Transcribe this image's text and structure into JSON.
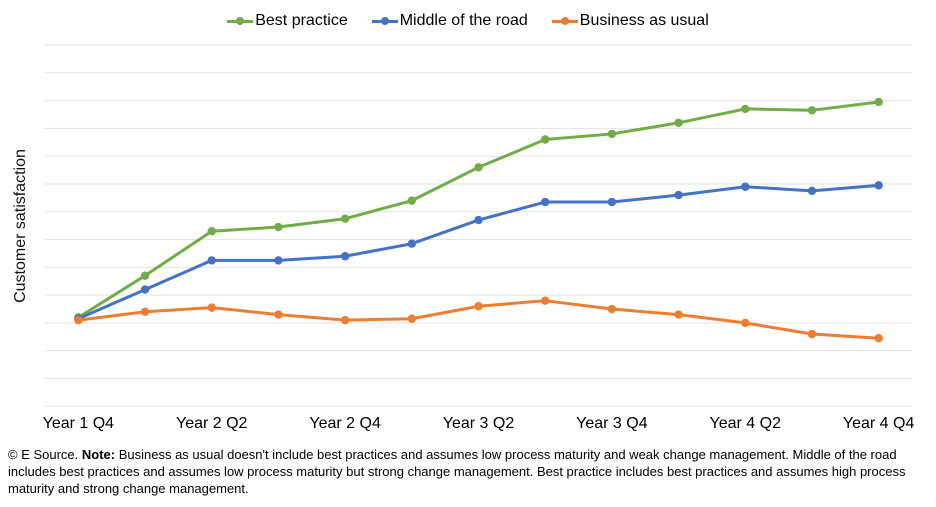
{
  "chart_data": {
    "type": "line",
    "title": "",
    "xlabel": "",
    "ylabel": "Customer satisfaction",
    "x_tick_labels": [
      "Year 1 Q4",
      "Year 2 Q2",
      "Year 2 Q4",
      "Year 3 Q2",
      "Year 3 Q4",
      "Year 4 Q2",
      "Year 4 Q4"
    ],
    "tick_every_n_points": 2,
    "n_points": 13,
    "ylim": [
      0,
      13
    ],
    "y_axis_numeric_labels_shown": false,
    "y_value_units": "relative level (estimated in gridline units; no numeric labels shown)",
    "grid": "horizontal-only",
    "gridline_count": 14,
    "gridline_color": "#e2e2e2",
    "legend_position": "top-center",
    "marker_style": "circle",
    "series": [
      {
        "name": "Best practice",
        "color": "#70AD47",
        "values": [
          3.2,
          4.7,
          6.3,
          6.45,
          6.75,
          7.4,
          8.6,
          9.6,
          9.8,
          10.2,
          10.7,
          10.65,
          10.95
        ]
      },
      {
        "name": "Middle of the road",
        "color": "#4472C4",
        "values": [
          3.15,
          4.2,
          5.25,
          5.25,
          5.4,
          5.85,
          6.7,
          7.35,
          7.35,
          7.6,
          7.9,
          7.75,
          7.95
        ]
      },
      {
        "name": "Business as usual",
        "color": "#ED7D31",
        "values": [
          3.1,
          3.4,
          3.55,
          3.3,
          3.1,
          3.15,
          3.6,
          3.8,
          3.5,
          3.3,
          3.0,
          2.6,
          2.45
        ]
      }
    ]
  },
  "footnote": {
    "prefix": "© E Source. ",
    "note_label": "Note:",
    "body": " Business as usual doesn't include best practices and assumes low process maturity and weak change management. Middle of the road includes best practices and assumes low process maturity but strong change management. Best practice includes best practices and assumes high process maturity and strong change management."
  }
}
